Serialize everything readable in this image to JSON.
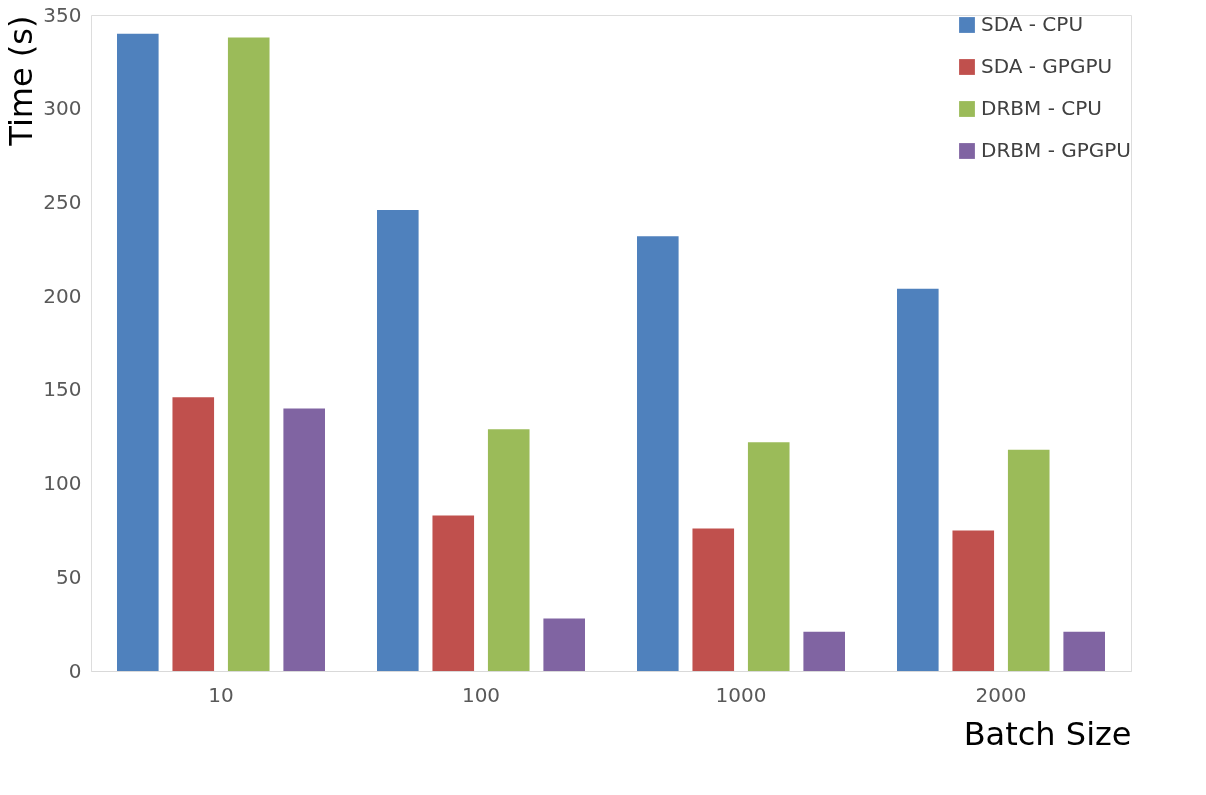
{
  "chart_data": {
    "type": "bar",
    "xlabel": "Batch Size",
    "ylabel": "Time (s)",
    "categories": [
      "10",
      "100",
      "1000",
      "2000"
    ],
    "series": [
      {
        "name": "SDA - CPU",
        "color": "#4f81bd",
        "values": [
          340,
          246,
          232,
          204
        ]
      },
      {
        "name": "SDA - GPGPU",
        "color": "#c0504d",
        "values": [
          146,
          83,
          76,
          75
        ]
      },
      {
        "name": "DRBM - CPU",
        "color": "#9bbb59",
        "values": [
          338,
          129,
          122,
          118
        ]
      },
      {
        "name": "DRBM - GPGPU",
        "color": "#8064a2",
        "values": [
          140,
          28,
          21,
          21
        ]
      }
    ],
    "ylim": [
      0,
      350
    ],
    "yticks": [
      0,
      50,
      100,
      150,
      200,
      250,
      300,
      350
    ],
    "grid": false,
    "legend": "top right"
  }
}
